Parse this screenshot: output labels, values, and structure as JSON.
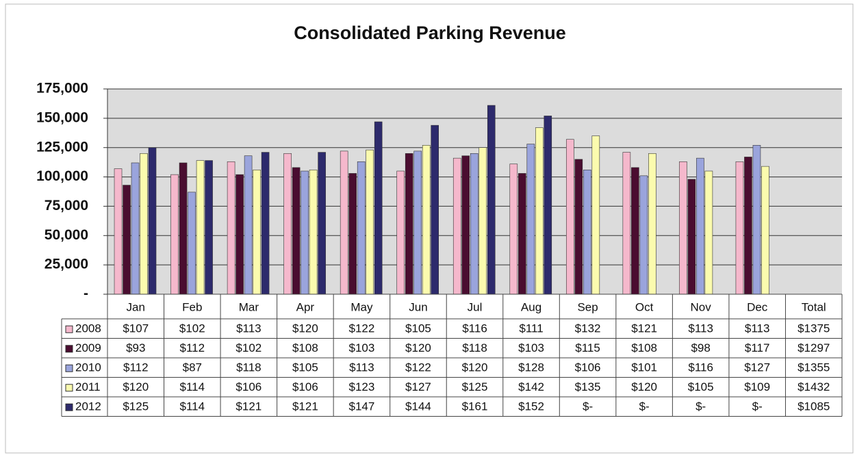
{
  "chart_data": {
    "type": "bar",
    "title": "Consolidated Parking Revenue",
    "categories": [
      "Jan",
      "Feb",
      "Mar",
      "Apr",
      "May",
      "Jun",
      "Jul",
      "Aug",
      "Sep",
      "Oct",
      "Nov",
      "Dec"
    ],
    "total_header": "Total",
    "ylim": [
      0,
      175000
    ],
    "yticks": [
      {
        "value": 0,
        "label": "-"
      },
      {
        "value": 25000,
        "label": "25,000"
      },
      {
        "value": 50000,
        "label": "50,000"
      },
      {
        "value": 75000,
        "label": "75,000"
      },
      {
        "value": 100000,
        "label": "100,000"
      },
      {
        "value": 125000,
        "label": "125,000"
      },
      {
        "value": 150000,
        "label": "150,000"
      },
      {
        "value": 175000,
        "label": "175,000"
      }
    ],
    "grid": true,
    "series": [
      {
        "name": "2008",
        "color": "#f5b8cc",
        "values": [
          107000,
          102000,
          113000,
          120000,
          122000,
          105000,
          116000,
          111000,
          132000,
          121000,
          113000,
          113000
        ],
        "value_labels": [
          "$107",
          "$102",
          "$113",
          "$120",
          "$122",
          "$105",
          "$116",
          "$111",
          "$132",
          "$121",
          "$113",
          "$113"
        ],
        "total": "$1375"
      },
      {
        "name": "2009",
        "color": "#4a0d30",
        "values": [
          93000,
          112000,
          102000,
          108000,
          103000,
          120000,
          118000,
          103000,
          115000,
          108000,
          98000,
          117000
        ],
        "value_labels": [
          "$93",
          "$112",
          "$102",
          "$108",
          "$103",
          "$120",
          "$118",
          "$103",
          "$115",
          "$108",
          "$98",
          "$117"
        ],
        "total": "$1297"
      },
      {
        "name": "2010",
        "color": "#9aa4dc",
        "values": [
          112000,
          87000,
          118000,
          105000,
          113000,
          122000,
          120000,
          128000,
          106000,
          101000,
          116000,
          127000
        ],
        "value_labels": [
          "$112",
          "$87",
          "$118",
          "$105",
          "$113",
          "$122",
          "$120",
          "$128",
          "$106",
          "$101",
          "$116",
          "$127"
        ],
        "total": "$1355"
      },
      {
        "name": "2011",
        "color": "#fbfbae",
        "values": [
          120000,
          114000,
          106000,
          106000,
          123000,
          127000,
          125000,
          142000,
          135000,
          120000,
          105000,
          109000
        ],
        "value_labels": [
          "$120",
          "$114",
          "$106",
          "$106",
          "$123",
          "$127",
          "$125",
          "$142",
          "$135",
          "$120",
          "$105",
          "$109"
        ],
        "total": "$1432"
      },
      {
        "name": "2012",
        "color": "#2d2a6c",
        "values": [
          125000,
          114000,
          121000,
          121000,
          147000,
          144000,
          161000,
          152000,
          null,
          null,
          null,
          null
        ],
        "value_labels": [
          "$125",
          "$114",
          "$121",
          "$121",
          "$147",
          "$144",
          "$161",
          "$152",
          "$-",
          "$-",
          "$-",
          "$-"
        ],
        "total": "$1085"
      }
    ]
  }
}
